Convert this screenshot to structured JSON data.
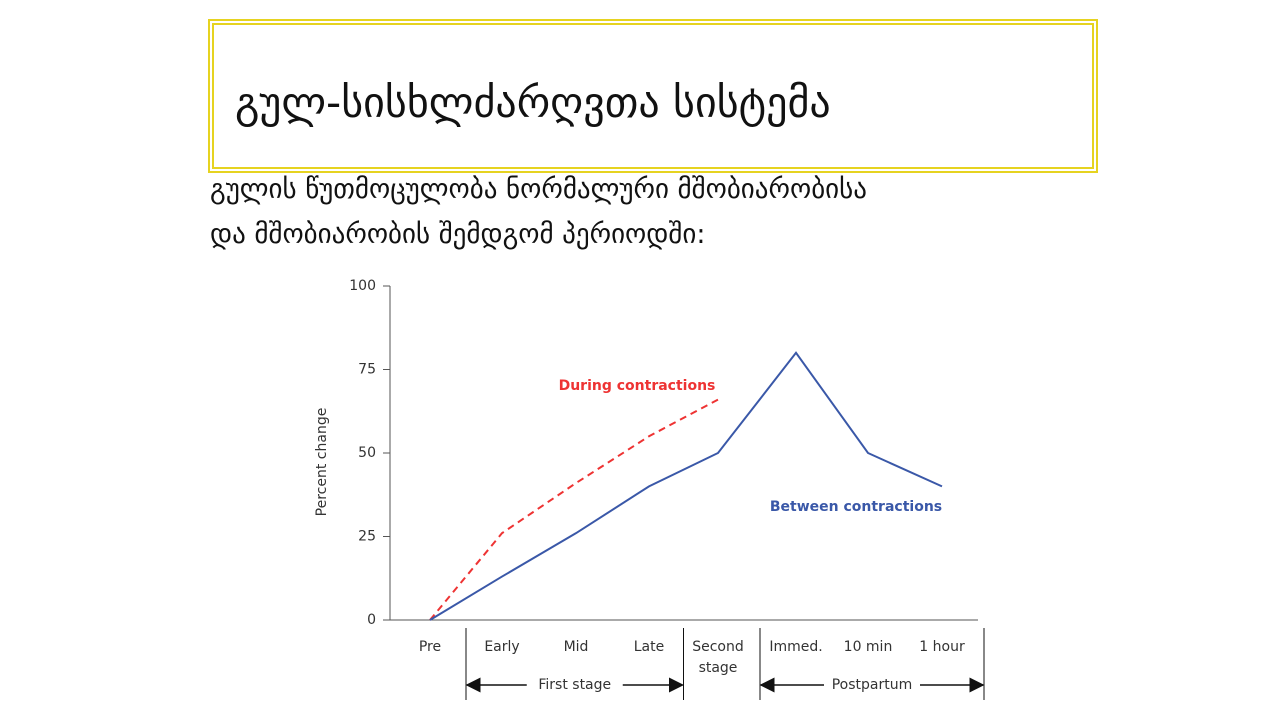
{
  "slide": {
    "title": "გულ-სისხლძარღვთა სისტემა",
    "text_lines": [
      "გულის წუთმოცულობა ნორმალური მშობიარობისა",
      "და მშობიარობის შემდგომ პერიოდში:"
    ]
  },
  "chart_data": {
    "type": "line",
    "categories": [
      "Pre",
      "Early",
      "Mid",
      "Late",
      "Second stage",
      "Immed.",
      "10 min",
      "1 hour"
    ],
    "series": [
      {
        "name": "During contractions",
        "color": "#ee3333",
        "dashed": true,
        "values": [
          0,
          26,
          41,
          55,
          66,
          null,
          null,
          null
        ]
      },
      {
        "name": "Between contractions",
        "color": "#3a58a8",
        "dashed": false,
        "values": [
          0,
          13,
          26,
          40,
          50,
          80,
          50,
          40
        ]
      }
    ],
    "y_label": "Percent change",
    "ylim": [
      0,
      100
    ],
    "yticks": [
      0,
      25,
      50,
      75,
      100
    ],
    "groups": [
      {
        "name": "First stage",
        "categories": [
          "Early",
          "Mid",
          "Late"
        ]
      },
      {
        "name": "Postpartum",
        "categories": [
          "Immed.",
          "10 min",
          "1 hour"
        ]
      }
    ]
  }
}
